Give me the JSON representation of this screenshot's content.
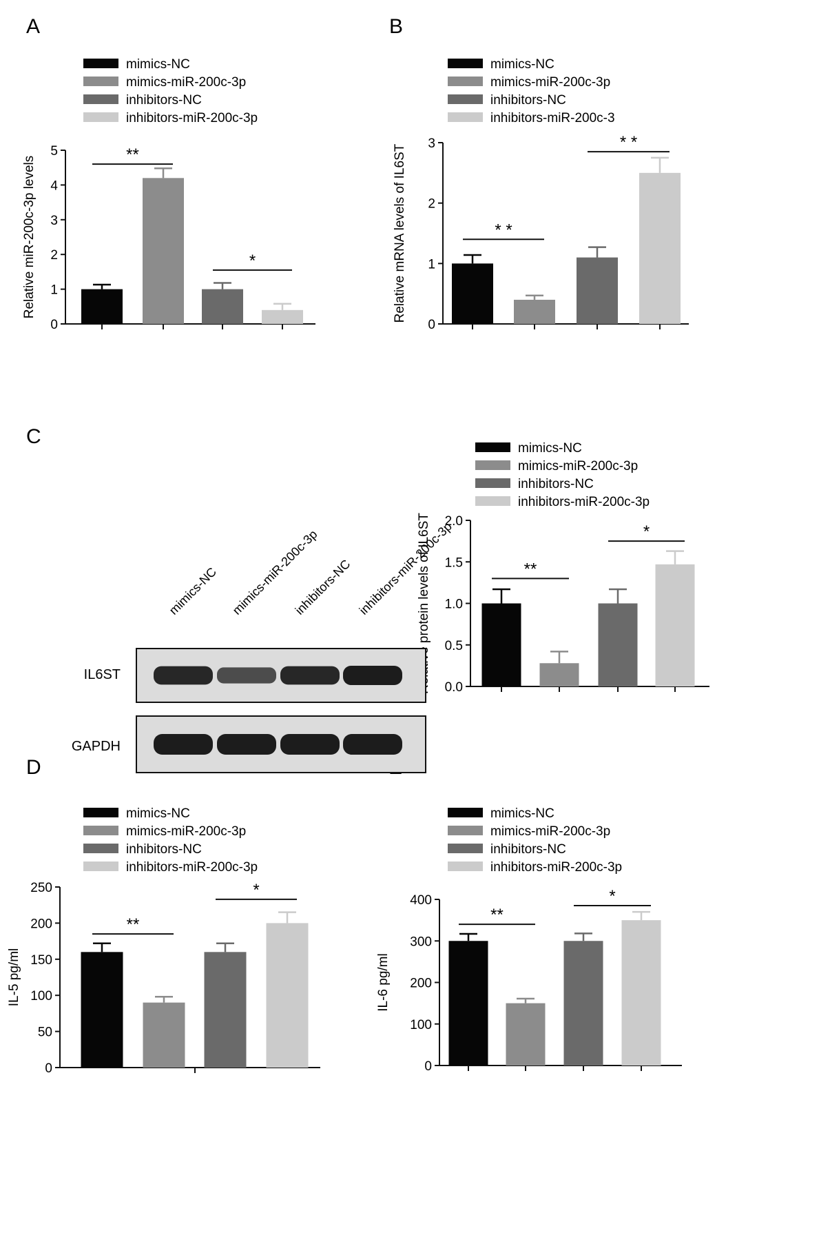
{
  "figure": {
    "colors": {
      "mimics-NC": "#060606",
      "mimics-miR-200c-3p": "#8c8c8c",
      "inhibitors-NC": "#6a6a6a",
      "inhibitors-miR-200c-3p": "#cbcbcb",
      "axis": "#111111"
    }
  },
  "chart_data": [
    {
      "panel": "A",
      "type": "bar",
      "categories": [
        "mimics-NC",
        "mimics-miR-200c-3p",
        "inhibitors-NC",
        "inhibitors-miR-200c-3p"
      ],
      "legend": [
        "mimics-NC",
        "mimics-miR-200c-3p",
        "inhibitors-NC",
        "inhibitors-miR-200c-3p"
      ],
      "values": [
        1.0,
        4.2,
        1.0,
        0.4
      ],
      "errors": [
        0.13,
        0.28,
        0.18,
        0.18
      ],
      "ylabel": "Relative miR-200c-3p levels",
      "ylim": [
        0,
        5
      ],
      "yticks": [
        "0",
        "1",
        "2",
        "3",
        "4",
        "5"
      ],
      "significance": [
        {
          "from": 0,
          "to": 1,
          "label": "**",
          "level": 4.6
        },
        {
          "from": 2,
          "to": 3,
          "label": "*",
          "level": 1.55
        }
      ]
    },
    {
      "panel": "B",
      "type": "bar",
      "categories": [
        "mimics-NC",
        "mimics-miR-200c-3p",
        "inhibitors-NC",
        "inhibitors-miR-200c-3"
      ],
      "legend": [
        "mimics-NC",
        "mimics-miR-200c-3p",
        "inhibitors-NC",
        "inhibitors-miR-200c-3"
      ],
      "values": [
        1.0,
        0.4,
        1.1,
        2.5
      ],
      "errors": [
        0.14,
        0.07,
        0.17,
        0.25
      ],
      "ylabel": "Relative mRNA levels of IL6ST",
      "ylim": [
        0,
        3
      ],
      "yticks": [
        "0",
        "1",
        "2",
        "3"
      ],
      "significance": [
        {
          "from": 0,
          "to": 1,
          "label": "* *",
          "level": 1.4
        },
        {
          "from": 2,
          "to": 3,
          "label": "* *",
          "level": 2.85
        }
      ]
    },
    {
      "panel": "C",
      "type": "bar",
      "categories": [
        "mimics-NC",
        "mimics-miR-200c-3p",
        "inhibitors-NC",
        "inhibitors-miR-200c-3p"
      ],
      "legend": [
        "mimics-NC",
        "mimics-miR-200c-3p",
        "inhibitors-NC",
        "inhibitors-miR-200c-3p"
      ],
      "values": [
        1.0,
        0.28,
        1.0,
        1.47
      ],
      "errors": [
        0.17,
        0.14,
        0.17,
        0.16
      ],
      "ylabel": "Relative protein levels of IL6ST",
      "ylim": [
        0,
        2.0
      ],
      "yticks": [
        "0.0",
        "0.5",
        "1.0",
        "1.5",
        "2.0"
      ],
      "significance": [
        {
          "from": 0,
          "to": 1,
          "label": "**",
          "level": 1.3
        },
        {
          "from": 2,
          "to": 3,
          "label": "*",
          "level": 1.75
        }
      ]
    },
    {
      "panel": "D",
      "type": "bar",
      "categories": [
        "mimics-NC",
        "mimics-miR-200c-3p",
        "inhibitors-NC",
        "inhibitors-miR-200c-3p"
      ],
      "legend": [
        "mimics-NC",
        "mimics-miR-200c-3p",
        "inhibitors-NC",
        "inhibitors-miR-200c-3p"
      ],
      "values": [
        160,
        90,
        160,
        200
      ],
      "errors": [
        12,
        8,
        12,
        15
      ],
      "ylabel": "IL-5 pg/ml",
      "ylim": [
        0,
        250
      ],
      "yticks": [
        "0",
        "50",
        "100",
        "150",
        "200",
        "250"
      ],
      "significance": [
        {
          "from": 0,
          "to": 1,
          "label": "**",
          "level": 185
        },
        {
          "from": 2,
          "to": 3,
          "label": "*",
          "level": 233
        }
      ]
    },
    {
      "panel": "E",
      "type": "bar",
      "categories": [
        "mimics-NC",
        "mimics-miR-200c-3p",
        "inhibitors-NC",
        "inhibitors-miR-200c-3p"
      ],
      "legend": [
        "mimics-NC",
        "mimics-miR-200c-3p",
        "inhibitors-NC",
        "inhibitors-miR-200c-3p"
      ],
      "values": [
        300,
        150,
        300,
        350
      ],
      "errors": [
        17,
        11,
        18,
        20
      ],
      "ylabel": "IL-6 pg/ml",
      "ylim": [
        0,
        400
      ],
      "yticks": [
        "0",
        "100",
        "200",
        "300",
        "400"
      ],
      "significance": [
        {
          "from": 0,
          "to": 1,
          "label": "**",
          "level": 340
        },
        {
          "from": 2,
          "to": 3,
          "label": "*",
          "level": 385
        }
      ]
    }
  ],
  "western_blot": {
    "lane_labels": [
      "mimics-NC",
      "mimics-miR-200c-3p",
      "inhibitors-NC",
      "inhibitors-miR-200c-3p"
    ],
    "rows": [
      {
        "label": "IL6ST",
        "intensity": [
          0.9,
          0.6,
          0.9,
          1.0
        ]
      },
      {
        "label": "GAPDH",
        "intensity": [
          1.0,
          1.0,
          1.0,
          1.0
        ]
      }
    ]
  }
}
